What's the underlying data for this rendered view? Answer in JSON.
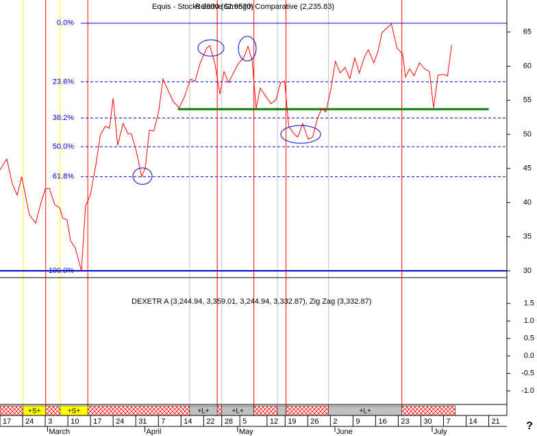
{
  "chart_data": {
    "type": "line",
    "title": "Equis - Stocks 2000 (62.9570)",
    "subtitle": "Relative Strength Comparative (2,235.83)",
    "xlim": [
      0,
      112
    ],
    "ylim": [
      29,
      69.7
    ],
    "yticks": [
      30,
      35,
      40,
      45,
      50,
      55,
      60,
      65
    ],
    "xticks": [
      {
        "value": 0,
        "label": "17"
      },
      {
        "value": 5,
        "label": "24"
      },
      {
        "value": 10,
        "label": "3"
      },
      {
        "value": 15,
        "label": "10"
      },
      {
        "value": 20,
        "label": "17"
      },
      {
        "value": 25,
        "label": "24"
      },
      {
        "value": 30,
        "label": "31"
      },
      {
        "value": 35,
        "label": "7"
      },
      {
        "value": 40,
        "label": "14"
      },
      {
        "value": 45,
        "label": "22"
      },
      {
        "value": 49,
        "label": "28"
      },
      {
        "value": 53,
        "label": "5"
      },
      {
        "value": 59,
        "label": "12"
      },
      {
        "value": 63,
        "label": "19"
      },
      {
        "value": 68,
        "label": "26"
      },
      {
        "value": 73,
        "label": "2"
      },
      {
        "value": 78,
        "label": "9"
      },
      {
        "value": 83,
        "label": "16"
      },
      {
        "value": 88,
        "label": "23"
      },
      {
        "value": 93,
        "label": "30"
      },
      {
        "value": 98,
        "label": "7"
      },
      {
        "value": 103,
        "label": "14"
      },
      {
        "value": 108,
        "label": "21"
      }
    ],
    "months": [
      {
        "value": 10.5,
        "label": "March"
      },
      {
        "value": 32,
        "label": "April"
      },
      {
        "value": 52.5,
        "label": "May"
      },
      {
        "value": 74,
        "label": "June"
      },
      {
        "value": 95.5,
        "label": "July"
      }
    ],
    "x": [
      0,
      1.5,
      2.7,
      3.8,
      4.8,
      6.5,
      7.9,
      9.1,
      10.0,
      10.9,
      12.1,
      13.2,
      13.9,
      14.8,
      15.6,
      16.6,
      18.0,
      18.9,
      20.0,
      21.2,
      22.2,
      23.3,
      24.2,
      25.0,
      26.0,
      27.2,
      28.3,
      29.0,
      30.1,
      31.3,
      32.1,
      33.0,
      34.0,
      35.1,
      36.0,
      36.9,
      38.3,
      39.6,
      40.8,
      42.1,
      43.1,
      44.2,
      45.7,
      46.4,
      47.5,
      48.6,
      49.5,
      50.5,
      51.6,
      52.6,
      53.9,
      54.8,
      55.7,
      56.6,
      57.5,
      58.7,
      59.9,
      61.0,
      62.0,
      62.9,
      63.8,
      64.8,
      65.8,
      66.9,
      68.1,
      69.1,
      70.2,
      71.1,
      72.0,
      73.1,
      74.1,
      75.2,
      76.2,
      77.3,
      78.4,
      79.4,
      80.5,
      81.4,
      82.6,
      83.5,
      84.4,
      85.5,
      86.5,
      87.7,
      89.0,
      89.6,
      90.5,
      91.5,
      92.7,
      93.8,
      94.9,
      95.8,
      96.8,
      97.9,
      98.9,
      99.8
    ],
    "series": [
      {
        "color": "#ff0000",
        "values": [
          44.8,
          46.4,
          42.8,
          41.1,
          43.8,
          38.2,
          37.0,
          40.1,
          42.0,
          42.1,
          39.7,
          39.2,
          37.7,
          37.5,
          34.4,
          33.4,
          30.0,
          39.5,
          41.2,
          45.6,
          50.0,
          51.2,
          50.9,
          55.3,
          48.4,
          51.6,
          50.1,
          50.1,
          47.6,
          43.8,
          45.1,
          50.6,
          50.5,
          53.5,
          58.1,
          56.8,
          54.8,
          53.9,
          55.6,
          58.1,
          57.8,
          60.4,
          62.7,
          63.0,
          60.3,
          55.9,
          59.2,
          57.6,
          59.0,
          60.3,
          61.3,
          62.9,
          60.9,
          53.8,
          56.8,
          55.6,
          54.5,
          55.1,
          57.6,
          57.8,
          51.2,
          50.2,
          49.6,
          51.6,
          49.3,
          49.6,
          52.4,
          53.8,
          53.3,
          56.6,
          60.7,
          59.0,
          59.8,
          58.2,
          61.2,
          59.0,
          61.3,
          62.4,
          60.5,
          62.1,
          64.9,
          65.6,
          66.2,
          62.7,
          61.7,
          58.4,
          59.6,
          58.6,
          60.5,
          59.6,
          59.2,
          53.9,
          58.7,
          58.8,
          58.6,
          63.1
        ]
      }
    ],
    "fib_levels": [
      {
        "value": 66.3,
        "label": "0.0%"
      },
      {
        "value": 57.7,
        "label": "23.6%"
      },
      {
        "value": 52.4,
        "label": "38.2%"
      },
      {
        "value": 48.2,
        "label": "50.0%"
      },
      {
        "value": 43.8,
        "label": "61.8%"
      },
      {
        "value": 30.0,
        "label": "100.0%"
      }
    ],
    "fib_color": "#0000cc",
    "trendline": {
      "x": [
        39.3,
        108
      ],
      "value": 53.7,
      "color": "#008000"
    },
    "signal_lines": [
      {
        "x": 5.1,
        "color": "#ffff00"
      },
      {
        "x": 13.3,
        "color": "#ffff00"
      },
      {
        "x": 41.9,
        "color": "#c0c0c0"
      },
      {
        "x": 49.0,
        "color": "#c0c0c0"
      },
      {
        "x": 61.3,
        "color": "#c0c0c0"
      },
      {
        "x": 72.6,
        "color": "#c0c0c0"
      },
      {
        "x": 10.1,
        "color": "#ff0000"
      },
      {
        "x": 19.4,
        "color": "#ff0000"
      },
      {
        "x": 48.0,
        "color": "#ff0000"
      },
      {
        "x": 56.1,
        "color": "#ff0000"
      },
      {
        "x": 63.2,
        "color": "#ff0000"
      },
      {
        "x": 88.8,
        "color": "#ff0000"
      }
    ],
    "signal_bar": [
      {
        "x": [
          0,
          5.1
        ],
        "pattern": "hatch"
      },
      {
        "x": [
          5.1,
          10.1
        ],
        "color": "#ffff00",
        "label": "+S+"
      },
      {
        "x": [
          10.1,
          13.3
        ],
        "pattern": "hatch"
      },
      {
        "x": [
          13.3,
          19.4
        ],
        "color": "#ffff00",
        "label": "+S+"
      },
      {
        "x": [
          19.4,
          41.9
        ],
        "pattern": "hatch"
      },
      {
        "x": [
          41.9,
          48.0
        ],
        "color": "#c0c0c0",
        "label": "+L+"
      },
      {
        "x": [
          48.0,
          49.0
        ],
        "pattern": "hatch"
      },
      {
        "x": [
          49.0,
          56.1
        ],
        "color": "#c0c0c0",
        "label": "+L+"
      },
      {
        "x": [
          56.1,
          61.3
        ],
        "pattern": "hatch"
      },
      {
        "x": [
          61.3,
          63.2
        ],
        "color": "#c0c0c0"
      },
      {
        "x": [
          63.2,
          72.6
        ],
        "pattern": "hatch"
      },
      {
        "x": [
          72.6,
          88.8
        ],
        "color": "#c0c0c0",
        "label": "+L+"
      },
      {
        "x": [
          88.8,
          100.6
        ],
        "pattern": "hatch"
      }
    ],
    "lower_panel": {
      "label": "DEXETR A (3,244.94, 3,359.01, 3,244.94, 3,332.87), Zig Zag (3,332.87)",
      "ylim": [
        -1.39,
        2.24
      ],
      "yticks": [
        {
          "value": 1.5,
          "label": "1.5"
        },
        {
          "value": 1.0,
          "label": "1.0"
        },
        {
          "value": 0.5,
          "label": "0.5"
        },
        {
          "value": 0.0,
          "label": "0.0"
        },
        {
          "value": -0.5,
          "label": "-0.5"
        },
        {
          "value": -1.0,
          "label": "-1.0"
        }
      ]
    },
    "help": "?"
  }
}
